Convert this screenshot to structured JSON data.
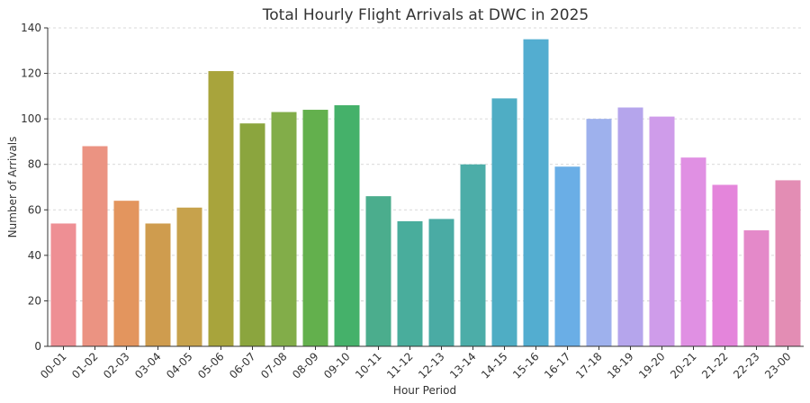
{
  "chart_data": {
    "type": "bar",
    "title": "Total Hourly Flight Arrivals at DWC in 2025",
    "xlabel": "Hour Period",
    "ylabel": "Number of Arrivals",
    "ylim": [
      0,
      140
    ],
    "yticks": [
      0,
      20,
      40,
      60,
      80,
      100,
      120,
      140
    ],
    "grid": true,
    "categories": [
      "00-01",
      "01-02",
      "02-03",
      "03-04",
      "04-05",
      "05-06",
      "06-07",
      "07-08",
      "08-09",
      "09-10",
      "10-11",
      "11-12",
      "12-13",
      "13-14",
      "14-15",
      "15-16",
      "16-17",
      "17-18",
      "18-19",
      "19-20",
      "20-21",
      "21-22",
      "22-23",
      "23-00"
    ],
    "values": [
      54,
      88,
      64,
      54,
      61,
      121,
      98,
      103,
      104,
      106,
      66,
      55,
      56,
      80,
      109,
      135,
      79,
      100,
      105,
      101,
      83,
      71,
      51,
      73
    ],
    "colors": [
      "#ee8f94",
      "#eb9382",
      "#e3955e",
      "#cf9c4e",
      "#c7a24c",
      "#a8a43c",
      "#8ba53e",
      "#82ad49",
      "#63b04d",
      "#45b16a",
      "#4bad8d",
      "#49ad9c",
      "#4aaba4",
      "#4cada8",
      "#4fadc4",
      "#53add0",
      "#6aaee6",
      "#9eb1ed",
      "#b5a5ec",
      "#cf9cea",
      "#e090e3",
      "#e485db",
      "#e489c9",
      "#e38db4"
    ]
  }
}
